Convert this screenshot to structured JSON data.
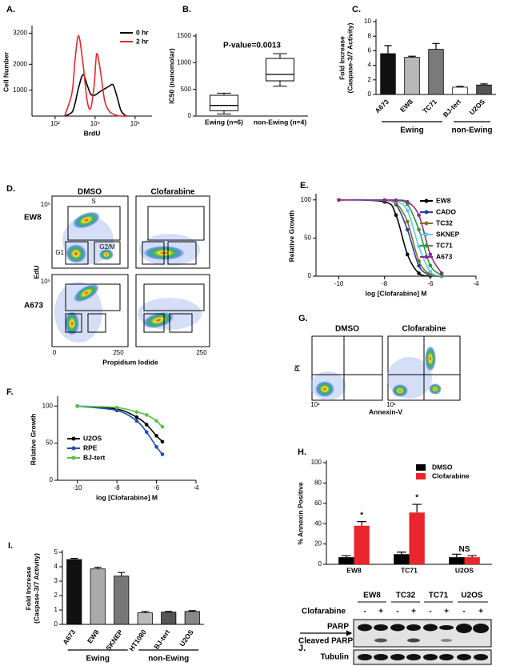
{
  "chart_data": [
    {
      "type": "line",
      "label": "A.",
      "ylabel": "Cell Number",
      "xlabel": "BrdU",
      "xscale": "log",
      "legend": "upper right",
      "xlim": [
        7,
        7000000
      ],
      "xticks": [
        {
          "value": 100,
          "label": "10²"
        },
        {
          "value": 10000,
          "label": "10⁴"
        },
        {
          "value": 1000000,
          "label": "10⁶"
        }
      ],
      "ylim": [
        0,
        3400
      ],
      "yticks": [
        1000,
        2000,
        3200
      ],
      "x": [
        300,
        700,
        1000,
        1500,
        2500,
        4000,
        6000,
        9000,
        12000,
        18000,
        30000,
        50000,
        80000,
        130000,
        200000,
        350000
      ],
      "series": [
        {
          "name": "0 hr",
          "color": "#000000",
          "values": [
            0,
            150,
            500,
            1100,
            1600,
            1200,
            850,
            800,
            850,
            950,
            1050,
            1150,
            1200,
            700,
            200,
            0
          ]
        },
        {
          "name": "2 hr",
          "color": "#e8262b",
          "values": [
            0,
            900,
            2200,
            3100,
            2000,
            600,
            300,
            1200,
            2400,
            1800,
            600,
            200,
            80,
            20,
            0,
            0
          ]
        }
      ]
    },
    {
      "type": "box",
      "label": "B.",
      "ylabel": "IC50 (nanomolar)",
      "annotation": "P-value=0.0013",
      "categories": [
        "Ewing (n=6)",
        "non-Ewing (n=4)"
      ],
      "boxes": [
        {
          "min": 40,
          "q1": 100,
          "median": 200,
          "q3": 390,
          "max": 430
        },
        {
          "min": 560,
          "q1": 660,
          "median": 780,
          "q3": 1080,
          "max": 1170
        }
      ],
      "ylim": [
        0,
        1500
      ],
      "yticks": [
        0,
        500,
        1000,
        1500
      ]
    },
    {
      "type": "bar",
      "label": "C.",
      "ylabel": [
        "Fold Increase",
        "(Caspase-3/7 Activity)"
      ],
      "categories": [
        "A673",
        "EW8",
        "TC71",
        "BJ-tert",
        "U2OS"
      ],
      "values": [
        5.6,
        5.1,
        6.2,
        1.0,
        1.3
      ],
      "errors": [
        1.1,
        0.15,
        0.8,
        0.1,
        0.15
      ],
      "colors": [
        "#111111",
        "#b8b8b8",
        "#7a7a7a",
        "#ffffff",
        "#555555"
      ],
      "groups": [
        "Ewing",
        "non-Ewing"
      ],
      "ylim": [
        0,
        10
      ],
      "yticks": [
        0,
        2,
        4,
        6,
        8,
        10
      ]
    },
    {
      "type": "line",
      "label": "E.",
      "ylabel": "Relative Growth",
      "xlabel": "log [Clofarabine] M",
      "legend": "right",
      "xlim": [
        -11,
        -4
      ],
      "xticks": [
        -10,
        -8,
        -6,
        -4
      ],
      "ylim": [
        0,
        105
      ],
      "yticks": [
        0,
        50,
        100
      ],
      "x": [
        -10,
        -8,
        -7.5,
        -7,
        -6.5,
        -6,
        -5.5
      ],
      "series": [
        {
          "name": "EW8",
          "color": "#000000",
          "values": [
            100,
            97.5,
            80,
            28.5,
            3.8,
            0.4,
            0
          ]
        },
        {
          "name": "CADO",
          "color": "#1f3f9a",
          "values": [
            100,
            99.4,
            94,
            61,
            13.7,
            1.6,
            0.2
          ]
        },
        {
          "name": "TC32",
          "color": "#8a6d1e",
          "values": [
            100,
            99.6,
            96,
            71.5,
            20,
            2.4,
            0.3
          ]
        },
        {
          "name": "SKNEP",
          "color": "#5bc8f0",
          "values": [
            100,
            99.8,
            98.4,
            86,
            39,
            6,
            0.6
          ]
        },
        {
          "name": "TC71",
          "color": "#2e9a3a",
          "values": [
            100,
            100,
            99.4,
            94,
            61,
            14,
            1.6
          ]
        },
        {
          "name": "A673",
          "color": "#8b2a8e",
          "values": [
            100,
            100,
            99.7,
            97.5,
            80,
            28.5,
            3.8
          ]
        }
      ]
    },
    {
      "type": "line",
      "label": "F.",
      "ylabel": "Relative Growth",
      "xlabel": "log [Clofarabine] M",
      "legend": "lower left",
      "xlim": [
        -11,
        -4
      ],
      "xticks": [
        -10,
        -8,
        -6,
        -4
      ],
      "ylim": [
        0,
        110
      ],
      "yticks": [
        0,
        50,
        100
      ],
      "x": [
        -10,
        -8,
        -7,
        -6.5,
        -6,
        -5.7
      ],
      "series": [
        {
          "name": "U2OS",
          "color": "#000000",
          "values": [
            100,
            96,
            85,
            75,
            60,
            52
          ]
        },
        {
          "name": "RPE",
          "color": "#1f4fa8",
          "values": [
            100,
            94,
            80,
            65,
            45,
            35
          ]
        },
        {
          "name": "BJ-tert",
          "color": "#5cc04a",
          "values": [
            100,
            98,
            92,
            88,
            80,
            72
          ]
        }
      ]
    },
    {
      "type": "grouped_bar",
      "label": "H.",
      "ylabel": "% Annexin Positive",
      "legend": "upper right",
      "categories": [
        "EW8",
        "TC71",
        "U2OS"
      ],
      "annotations": [
        "*",
        "*",
        "NS"
      ],
      "series": [
        {
          "name": "DMSO",
          "color": "#000000",
          "values": [
            7,
            10,
            7
          ],
          "errors": [
            1.5,
            2,
            3
          ]
        },
        {
          "name": "Clofarabine",
          "color": "#e8262b",
          "values": [
            38,
            51,
            7
          ],
          "errors": [
            4,
            8,
            1.5
          ]
        }
      ],
      "ylim": [
        0,
        100
      ],
      "yticks": [
        0,
        20,
        40,
        60,
        80,
        100
      ]
    },
    {
      "type": "bar",
      "label": "I.",
      "ylabel": [
        "Fold Increase",
        "(Caspase-3/7 Activity)"
      ],
      "categories": [
        "A673",
        "EW8",
        "SKNEP",
        "HT1080",
        "BJ-tert",
        "U2OS"
      ],
      "values": [
        4.5,
        3.85,
        3.35,
        0.8,
        0.85,
        0.9
      ],
      "errors": [
        0.08,
        0.12,
        0.25,
        0.1,
        0.05,
        0.05
      ],
      "colors": [
        "#111111",
        "#aaaaaa",
        "#777777",
        "#bbbbbb",
        "#555555",
        "#888888"
      ],
      "groups": [
        "Ewing",
        "non-Ewing"
      ],
      "ylim": [
        0,
        5
      ],
      "yticks": [
        0,
        1,
        2,
        3,
        4,
        5
      ]
    }
  ],
  "flow_d": {
    "label": "D.",
    "columns": [
      "DMSO",
      "Clofarabine"
    ],
    "rows": [
      "EW8",
      "A673"
    ],
    "ylabel": "EdU",
    "xlabel": "Propidium Iodide",
    "yticks": [
      "10⁵",
      "10⁵"
    ],
    "xticks": [
      "0",
      "250",
      "250"
    ],
    "gates": [
      "S",
      "G1",
      "G2/M"
    ]
  },
  "flow_g": {
    "label": "G.",
    "columns": [
      "DMSO",
      "Clofarabine"
    ],
    "ylabel": "PI",
    "xlabel": "Annexin-V",
    "xticks": [
      "10¹",
      "10¹"
    ]
  },
  "blot_j": {
    "label": "J.",
    "cell_lines": [
      "EW8",
      "TC32",
      "TC71",
      "U2OS"
    ],
    "treatment": "Clofarabine",
    "lanes": [
      "-",
      "+",
      "-",
      "+",
      "-",
      "+",
      "-",
      "+"
    ],
    "bands": [
      "PARP",
      "Cleaved PARP",
      "Tubulin"
    ]
  }
}
